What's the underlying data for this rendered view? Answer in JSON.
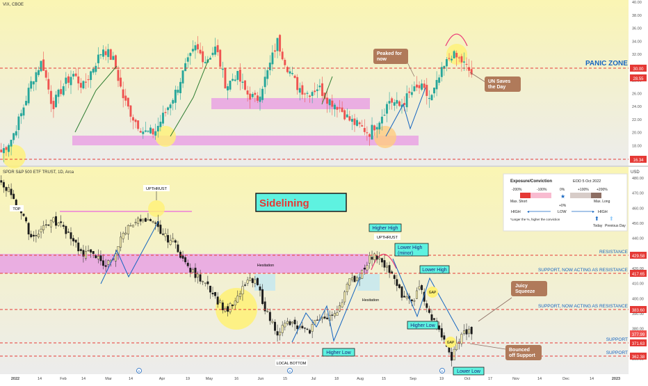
{
  "vix": {
    "header": "VIX, CBOE",
    "price_ticks": [
      "40.00",
      "38.00",
      "36.00",
      "34.00",
      "32.00",
      "30.00",
      "28.00",
      "26.00",
      "24.00",
      "22.00",
      "20.00",
      "18.00",
      "16.00"
    ],
    "level_tags": {
      "panic": "30.00",
      "current": "28.55",
      "low": "16.34"
    },
    "panic_zone_label": "PANIC ZONE",
    "callouts": {
      "peaked": "Peaked for now",
      "un": "UN Saves the Day"
    }
  },
  "spy": {
    "header": "SPDR S&P 500 ETF TRUST, 1D, Arca",
    "currency": "USD",
    "price_ticks": [
      "480.00",
      "470.00",
      "460.00",
      "450.00",
      "440.00",
      "430.00",
      "420.00",
      "410.00",
      "400.00",
      "390.00",
      "380.00",
      "370.00",
      "360.00"
    ],
    "level_tags": {
      "resistance": "429.58",
      "support1": "417.65",
      "support2": "383.60",
      "current": "377.99",
      "support3": "371.63",
      "support4": "362.38"
    },
    "level_labels": {
      "resistance": "RESISTANCE",
      "support_now_resistance_1": "SUPPORT, NOW ACTING AS RESISTANCE",
      "support_now_resistance_2": "SUPPORT, NOW ACTING AS RESISTANCE",
      "support_a": "SUPPORT",
      "support_b": "SUPPORT"
    },
    "sidelining": "Sidelining",
    "annotations": {
      "top": "TOP",
      "upthrust_1": "UPTHRUST",
      "upthrust_2": "UPTHRUST",
      "hesitation_1": "Hesitation",
      "hesitation_2": "Hesitation",
      "local_bottom": "LOCAL BOTTOM",
      "higher_low_1": "Higher Low",
      "higher_high": "Higher High",
      "lower_high_minor": "Lower High (minor)",
      "lower_high": "Lower High",
      "higher_low_2": "Higher Low",
      "lower_low": "Lower Low",
      "gap_1": "GAP",
      "gap_2": "GAP",
      "juicy": "Juicy Squeeze",
      "bounced": "Bounced off Support"
    },
    "time_axis": [
      "2022",
      "14",
      "Feb",
      "14",
      "Mar",
      "14",
      "Apr",
      "19",
      "May",
      "16",
      "Jun",
      "15",
      "Jul",
      "18",
      "Aug",
      "15",
      "Sep",
      "19",
      "Oct",
      "17",
      "Nov",
      "14",
      "Dec",
      "14",
      "2023"
    ]
  },
  "legend": {
    "title": "Exposure/Conviction",
    "date": "EOD 5 Oct 2022",
    "short_labels": [
      "-200%",
      "-100%"
    ],
    "zero": "0%",
    "long_labels": [
      "+100%",
      "+200%"
    ],
    "max_short": "Max. Short",
    "max_long": "Max. Long",
    "plus_zero": "+0%",
    "high": "HIGH",
    "low": "LOW",
    "note": "*Larger the %, higher the conviction",
    "today": "Today",
    "previous_day": "Previous Day",
    "colors": {
      "short_max": "#e53935",
      "short_mid": "#f8bbd0",
      "long_mid": "#d7ccc8",
      "long_max": "#8d6e63",
      "arrow": "#1565c0"
    }
  },
  "chart_data": [
    {
      "type": "candlestick",
      "title": "VIX, CBOE",
      "ylim": [
        15.5,
        40.5
      ],
      "annotations_levels": {
        "panic_zone": 30.0,
        "current": 28.55,
        "low": 16.34
      },
      "zones": [
        [
          19.2,
          20.6
        ],
        [
          23.7,
          25.3
        ]
      ],
      "closes_approx_by_month": {
        "2022-01": [
          17,
          19,
          23,
          28,
          31
        ],
        "2022-02": [
          24,
          27,
          29,
          27,
          30
        ],
        "2022-03": [
          33,
          31,
          25,
          22,
          20
        ],
        "2022-04": [
          20,
          23,
          26,
          30,
          33
        ],
        "2022-05": [
          31,
          33,
          27,
          29,
          26
        ],
        "2022-06": [
          25,
          29,
          34,
          30,
          27
        ],
        "2022-07": [
          26,
          27,
          25,
          24,
          22
        ],
        "2022-08": [
          21,
          20,
          22,
          25,
          24
        ],
        "2022-09": [
          26,
          27,
          25,
          29,
          32
        ],
        "2022-10": [
          31,
          29
        ]
      }
    },
    {
      "type": "candlestick",
      "title": "SPDR S&P 500 ETF TRUST, 1D, Arca",
      "ylim": [
        357,
        485
      ],
      "levels": {
        "resistance": 429.58,
        "support_now_resistance_1": 417.65,
        "support_now_resistance_2": 383.6,
        "support_a": 371.63,
        "support_b": 362.38,
        "last": 377.99
      },
      "zone": [
        417.65,
        430.8
      ],
      "closes_approx_by_month": {
        "2022-01": [
          477,
          470,
          456,
          440,
          447
        ],
        "2022-02": [
          452,
          448,
          440,
          428,
          432
        ],
        "2022-03": [
          420,
          428,
          444,
          452,
          451
        ],
        "2022-04": [
          449,
          441,
          437,
          423,
          415
        ],
        "2022-05": [
          412,
          400,
          392,
          398,
          412
        ],
        "2022-06": [
          410,
          390,
          378,
          384,
          381
        ],
        "2022-07": [
          377,
          388,
          386,
          394,
          411
        ],
        "2022-08": [
          415,
          427,
          428,
          418,
          404
        ],
        "2022-09": [
          397,
          407,
          388,
          377,
          360
        ],
        "2022-10": [
          377,
          378
        ]
      }
    }
  ]
}
